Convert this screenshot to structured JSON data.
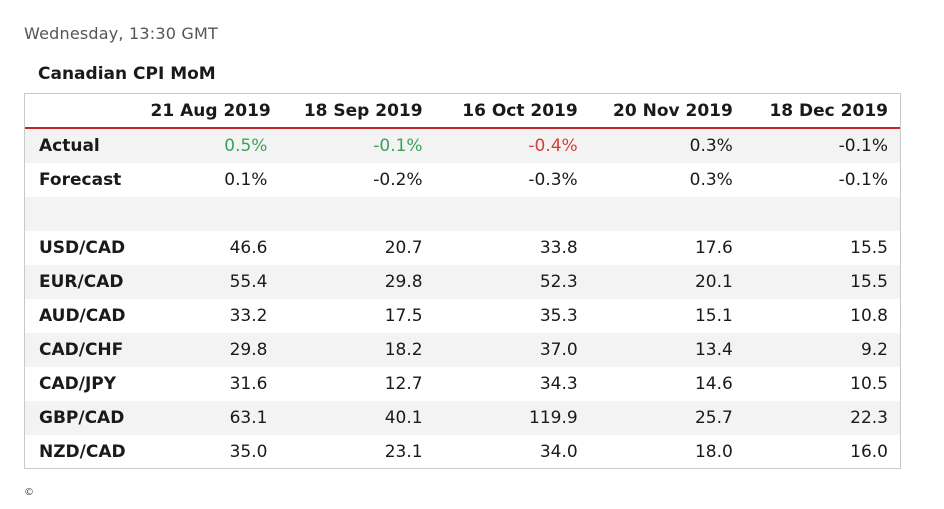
{
  "header": {
    "timestamp": "Wednesday, 13:30 GMT"
  },
  "table": {
    "title": "Canadian CPI MoM",
    "columns": [
      "21 Aug 2019",
      "18 Sep 2019",
      "16 Oct 2019",
      "20 Nov 2019",
      "18 Dec 2019"
    ],
    "rows": {
      "actual": {
        "label": "Actual",
        "values": [
          "0.5%",
          "-0.1%",
          "-0.4%",
          "0.3%",
          "-0.1%"
        ]
      },
      "forecast": {
        "label": "Forecast",
        "values": [
          "0.1%",
          "-0.2%",
          "-0.3%",
          "0.3%",
          "-0.1%"
        ]
      },
      "pairs": [
        {
          "label": "USD/CAD",
          "values": [
            "46.6",
            "20.7",
            "33.8",
            "17.6",
            "15.5"
          ]
        },
        {
          "label": "EUR/CAD",
          "values": [
            "55.4",
            "29.8",
            "52.3",
            "20.1",
            "15.5"
          ]
        },
        {
          "label": "AUD/CAD",
          "values": [
            "33.2",
            "17.5",
            "35.3",
            "15.1",
            "10.8"
          ]
        },
        {
          "label": "CAD/CHF",
          "values": [
            "29.8",
            "18.2",
            "37.0",
            "13.4",
            "9.2"
          ]
        },
        {
          "label": "CAD/JPY",
          "values": [
            "31.6",
            "12.7",
            "34.3",
            "14.6",
            "10.5"
          ]
        },
        {
          "label": "GBP/CAD",
          "values": [
            "63.1",
            "40.1",
            "119.9",
            "25.7",
            "22.3"
          ]
        },
        {
          "label": "NZD/CAD",
          "values": [
            "35.0",
            "23.1",
            "34.0",
            "18.0",
            "16.0"
          ]
        }
      ]
    }
  },
  "footer": {
    "copyright": "©"
  },
  "colors": {
    "positive": "#3aa35b",
    "negative": "#d6403a",
    "header_rule": "#c0272d",
    "row_shade": "#f3f3f3"
  }
}
